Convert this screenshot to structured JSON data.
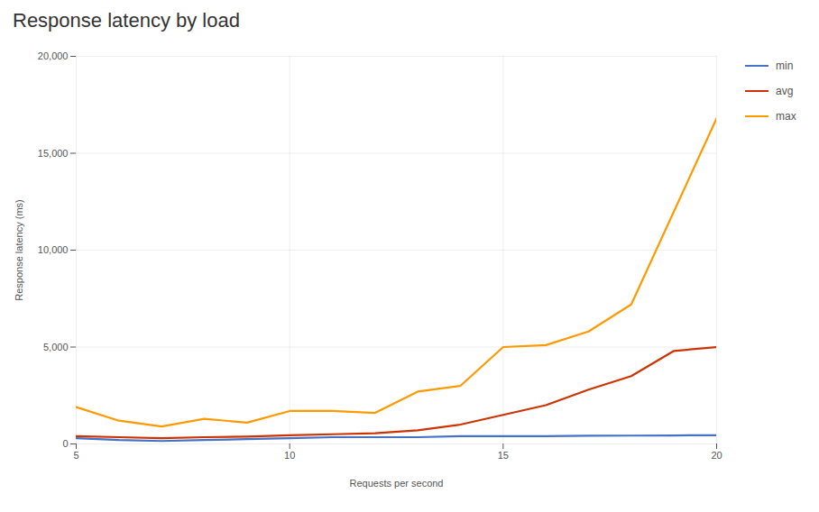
{
  "chart_data": {
    "type": "line",
    "title": "Response latency by load",
    "x_label": "Requests per second",
    "y_label": "Response latency (ms)",
    "x": [
      5,
      6,
      7,
      8,
      9,
      10,
      11,
      12,
      13,
      14,
      15,
      16,
      17,
      18,
      19,
      20
    ],
    "series": [
      {
        "name": "min",
        "color": "#4472c4",
        "values": [
          300,
          200,
          150,
          200,
          250,
          300,
          350,
          350,
          350,
          400,
          400,
          400,
          420,
          430,
          440,
          450
        ]
      },
      {
        "name": "avg",
        "color": "#cc3300",
        "values": [
          400,
          350,
          300,
          350,
          380,
          450,
          500,
          550,
          700,
          1000,
          1500,
          2000,
          2800,
          3500,
          4800,
          5000
        ]
      },
      {
        "name": "max",
        "color": "#ff9900",
        "values": [
          1900,
          1200,
          900,
          1300,
          1100,
          1700,
          1700,
          1600,
          2700,
          3000,
          5000,
          5100,
          5800,
          7200,
          12000,
          16800
        ]
      }
    ],
    "xlim": [
      5,
      20
    ],
    "xticks": [
      5,
      10,
      15,
      20
    ],
    "ylim": [
      0,
      20000
    ],
    "yticks": [
      0,
      {
        "value": 5000,
        "label": "5,000"
      },
      {
        "value": 10000,
        "label": "10,000"
      },
      {
        "value": 15000,
        "label": "15,000"
      },
      {
        "value": 20000,
        "label": "20,000"
      }
    ],
    "grid": true,
    "legend": "right"
  }
}
